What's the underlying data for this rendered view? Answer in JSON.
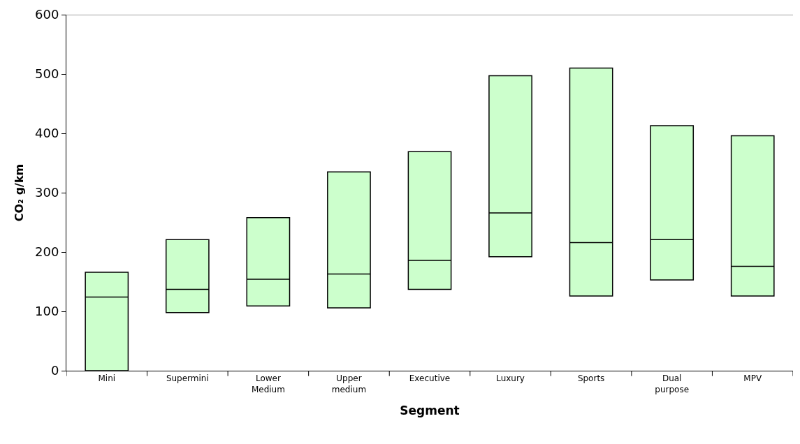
{
  "chart_data": {
    "type": "box",
    "xlabel": "Segment",
    "ylabel": "CO₂ g/km",
    "categories": [
      "Mini",
      "Supermini",
      "Lower\nMedium",
      "Upper\nmedium",
      "Executive",
      "Luxury",
      "Sports",
      "Dual\npurpose",
      "MPV"
    ],
    "color": "#ccffcc",
    "boxes": [
      {
        "low": 0,
        "q1": 0,
        "median": 124,
        "q3": 166,
        "high": 166
      },
      {
        "low": 98,
        "q1": 98,
        "median": 137,
        "q3": 221,
        "high": 221
      },
      {
        "low": 109,
        "q1": 109,
        "median": 154,
        "q3": 258,
        "high": 258
      },
      {
        "low": 106,
        "q1": 106,
        "median": 163,
        "q3": 335,
        "high": 335
      },
      {
        "low": 137,
        "q1": 137,
        "median": 186,
        "q3": 369,
        "high": 369
      },
      {
        "low": 192,
        "q1": 192,
        "median": 266,
        "q3": 497,
        "high": 497
      },
      {
        "low": 126,
        "q1": 126,
        "median": 216,
        "q3": 510,
        "high": 510
      },
      {
        "low": 153,
        "q1": 153,
        "median": 221,
        "q3": 413,
        "high": 413
      },
      {
        "low": 126,
        "q1": 126,
        "median": 176,
        "q3": 396,
        "high": 396
      }
    ],
    "ylim": [
      0,
      600
    ],
    "yticks": [
      0,
      100,
      200,
      300,
      400,
      500,
      600
    ]
  }
}
